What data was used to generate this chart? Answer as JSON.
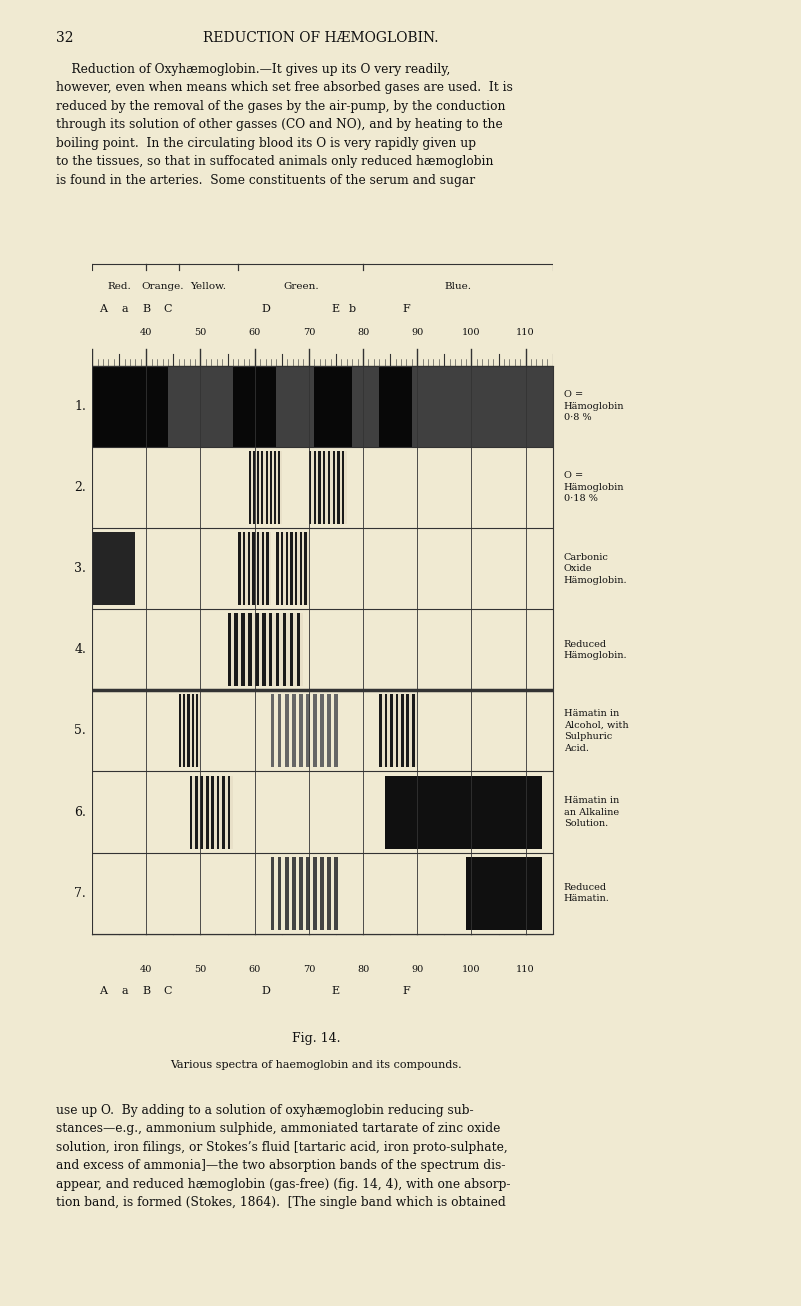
{
  "background_color": "#f0ead2",
  "page_background": "#f0ead2",
  "fig_caption": "Fig. 14.",
  "subtitle": "Various spectra of haemoglobin and its compounds.",
  "x_min": 30,
  "x_max": 115,
  "num_rows": 7,
  "row_labels": [
    "1.",
    "2.",
    "3.",
    "4.",
    "5.",
    "6.",
    "7."
  ],
  "row_descriptions": [
    "O =\nHämoglobin\n0·8 %",
    "O =\nHämoglobin\n0·18 %",
    "Carbonic\nOxide\nHämoglobin.",
    "Reduced\nHämoglobin.",
    "Hämatin in\nAlcohol, with\nSulphuric\nAcid.",
    "Hämatin in\nan Alkaline\nSolution.",
    "Reduced\nHämatin."
  ],
  "tick_positions": [
    40,
    50,
    60,
    70,
    80,
    90,
    100,
    110
  ],
  "fraunhofer_top": [
    [
      "A",
      32
    ],
    [
      "a",
      36
    ],
    [
      "B",
      40
    ],
    [
      "C",
      44
    ],
    [
      "D",
      62
    ],
    [
      "E",
      75
    ],
    [
      "b",
      78
    ],
    [
      "F",
      88
    ]
  ],
  "fraunhofer_bot": [
    [
      "A",
      32
    ],
    [
      "a",
      36
    ],
    [
      "B",
      40
    ],
    [
      "C",
      44
    ],
    [
      "D",
      62
    ],
    [
      "E",
      75
    ],
    [
      "F",
      88
    ]
  ],
  "color_regions": [
    [
      "Red.",
      30,
      40
    ],
    [
      "Orange.",
      40,
      46
    ],
    [
      "Yellow.",
      46,
      57
    ],
    [
      "Green.",
      57,
      80
    ],
    [
      "Blue.",
      80,
      115
    ]
  ],
  "text_color": "#111111",
  "grid_color": "#333333",
  "header_page": "32",
  "header_title": "REDUCTION OF HÆMOGLOBIN.",
  "body_top": "    Reduction of Oxyhæmoglobin.—It gives up its O very readily,\nhowever, even when means which set free absorbed gases are used.  It is\nreduced by the removal of the gases by the air-pump, by the conduction\nthrough its solution of other gasses (CO and NO), and by heating to the\nboiling point.  In the circulating blood its O is very rapidly given up\nto the tissues, so that in suffocated animals only reduced hæmoglobin\nis found in the arteries.  Some constituents of the serum and sugar",
  "body_bot": "use up O.  By adding to a solution of oxyhæmoglobin reducing sub-\nstances—e.g., ammonium sulphide, ammoniated tartarate of zinc oxide\nsolution, iron filings, or Stokes’s fluid [tartaric acid, iron proto-sulphate,\nand excess of ammonia]—the two absorption bands of the spectrum dis-\nappear, and reduced hæmoglobin (gas-free) (fig. 14, 4), with one absorp-\ntion band, is formed (Stokes, 1864).  [The single band which is obtained"
}
